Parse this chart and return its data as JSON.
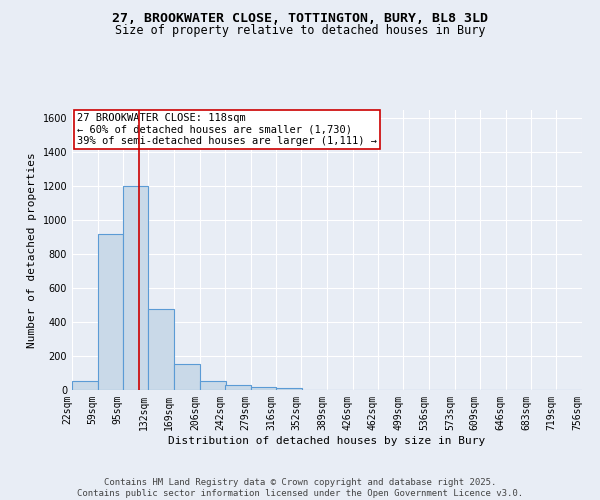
{
  "title_line1": "27, BROOKWATER CLOSE, TOTTINGTON, BURY, BL8 3LD",
  "title_line2": "Size of property relative to detached houses in Bury",
  "xlabel": "Distribution of detached houses by size in Bury",
  "ylabel": "Number of detached properties",
  "bin_labels": [
    "22sqm",
    "59sqm",
    "95sqm",
    "132sqm",
    "169sqm",
    "206sqm",
    "242sqm",
    "279sqm",
    "316sqm",
    "352sqm",
    "389sqm",
    "426sqm",
    "462sqm",
    "499sqm",
    "536sqm",
    "573sqm",
    "609sqm",
    "646sqm",
    "683sqm",
    "719sqm",
    "756sqm"
  ],
  "bin_edges": [
    22,
    59,
    95,
    132,
    169,
    206,
    242,
    279,
    316,
    352,
    389,
    426,
    462,
    499,
    536,
    573,
    609,
    646,
    683,
    719,
    756
  ],
  "bar_heights": [
    55,
    920,
    1200,
    475,
    155,
    55,
    30,
    15,
    10,
    0,
    0,
    0,
    0,
    0,
    0,
    0,
    0,
    0,
    0,
    0
  ],
  "bar_color": "#c9d9e8",
  "bar_edge_color": "#5b9bd5",
  "bar_edge_width": 0.8,
  "property_line_x": 118,
  "property_line_color": "#cc0000",
  "annotation_text": "27 BROOKWATER CLOSE: 118sqm\n← 60% of detached houses are smaller (1,730)\n39% of semi-detached houses are larger (1,111) →",
  "annotation_box_color": "#ffffff",
  "annotation_box_edge_color": "#cc0000",
  "ylim": [
    0,
    1650
  ],
  "yticks": [
    0,
    200,
    400,
    600,
    800,
    1000,
    1200,
    1400,
    1600
  ],
  "background_color": "#e8edf5",
  "plot_bg_color": "#e8edf5",
  "grid_color": "#ffffff",
  "footnote": "Contains HM Land Registry data © Crown copyright and database right 2025.\nContains public sector information licensed under the Open Government Licence v3.0.",
  "title_fontsize": 9.5,
  "subtitle_fontsize": 8.5,
  "axis_label_fontsize": 8,
  "tick_fontsize": 7,
  "annotation_fontsize": 7.5,
  "footnote_fontsize": 6.5
}
